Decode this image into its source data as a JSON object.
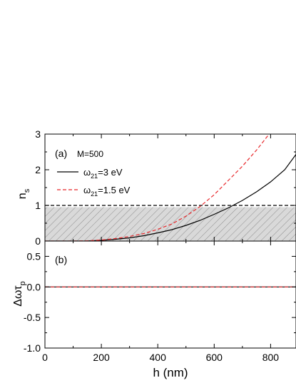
{
  "chart_data": [
    {
      "type": "line",
      "panel_label": "(a)",
      "annotation": "M=500",
      "ylabel": "n",
      "ylabel_sub": "s",
      "xlim": [
        0,
        890
      ],
      "ylim": [
        0,
        3
      ],
      "xticks": [
        "0",
        "200",
        "400",
        "600",
        "800"
      ],
      "xtick_values": [
        0,
        200,
        400,
        600,
        800
      ],
      "yticks": [
        "0",
        "1",
        "2",
        "3"
      ],
      "ytick_values": [
        0,
        1,
        2,
        3
      ],
      "threshold": {
        "y": 1,
        "style": "dashed",
        "color": "#000000"
      },
      "shaded_region": {
        "y_from": 0,
        "y_to": 0.95,
        "fill": "#d9d9d9",
        "pattern": "diagonal-hatch"
      },
      "series": [
        {
          "name": "ω21=3 eV",
          "name_main": "ω",
          "name_sub": "21",
          "name_rest": "=3 eV",
          "color": "#000000",
          "style": "solid",
          "x": [
            0,
            100,
            150,
            200,
            250,
            300,
            350,
            400,
            450,
            500,
            550,
            600,
            650,
            700,
            750,
            800,
            850,
            890
          ],
          "y": [
            0,
            0,
            0.005,
            0.02,
            0.05,
            0.09,
            0.15,
            0.23,
            0.32,
            0.44,
            0.58,
            0.75,
            0.93,
            1.14,
            1.38,
            1.66,
            2.0,
            2.43
          ]
        },
        {
          "name": "ω21=1.5 eV",
          "name_main": "ω",
          "name_sub": "21",
          "name_rest": "=1.5 eV",
          "color": "#e8282b",
          "style": "dashed",
          "x": [
            0,
            100,
            150,
            200,
            250,
            300,
            350,
            400,
            450,
            500,
            550,
            600,
            650,
            700,
            750,
            790
          ],
          "y": [
            0,
            0,
            0.008,
            0.03,
            0.07,
            0.13,
            0.21,
            0.33,
            0.48,
            0.7,
            0.97,
            1.3,
            1.7,
            2.1,
            2.55,
            2.95
          ]
        }
      ]
    },
    {
      "type": "line",
      "panel_label": "(b)",
      "ylabel": "Δωτ",
      "ylabel_sub": "p",
      "xlabel": "h (nm)",
      "xlim": [
        0,
        890
      ],
      "ylim": [
        -1.0,
        0.75
      ],
      "xticks": [
        "0",
        "200",
        "400",
        "600",
        "800"
      ],
      "xtick_values": [
        0,
        200,
        400,
        600,
        800
      ],
      "yticks": [
        "0.5",
        "0.0",
        "-0.5",
        "-1.0"
      ],
      "ytick_values": [
        0.5,
        0.0,
        -0.5,
        -1.0
      ],
      "series": [
        {
          "color": "#000000",
          "style": "solid",
          "x": [
            0,
            890
          ],
          "y": [
            0,
            0
          ]
        },
        {
          "color": "#e8282b",
          "style": "dashed",
          "x": [
            0,
            890
          ],
          "y": [
            0,
            0
          ]
        }
      ]
    }
  ]
}
